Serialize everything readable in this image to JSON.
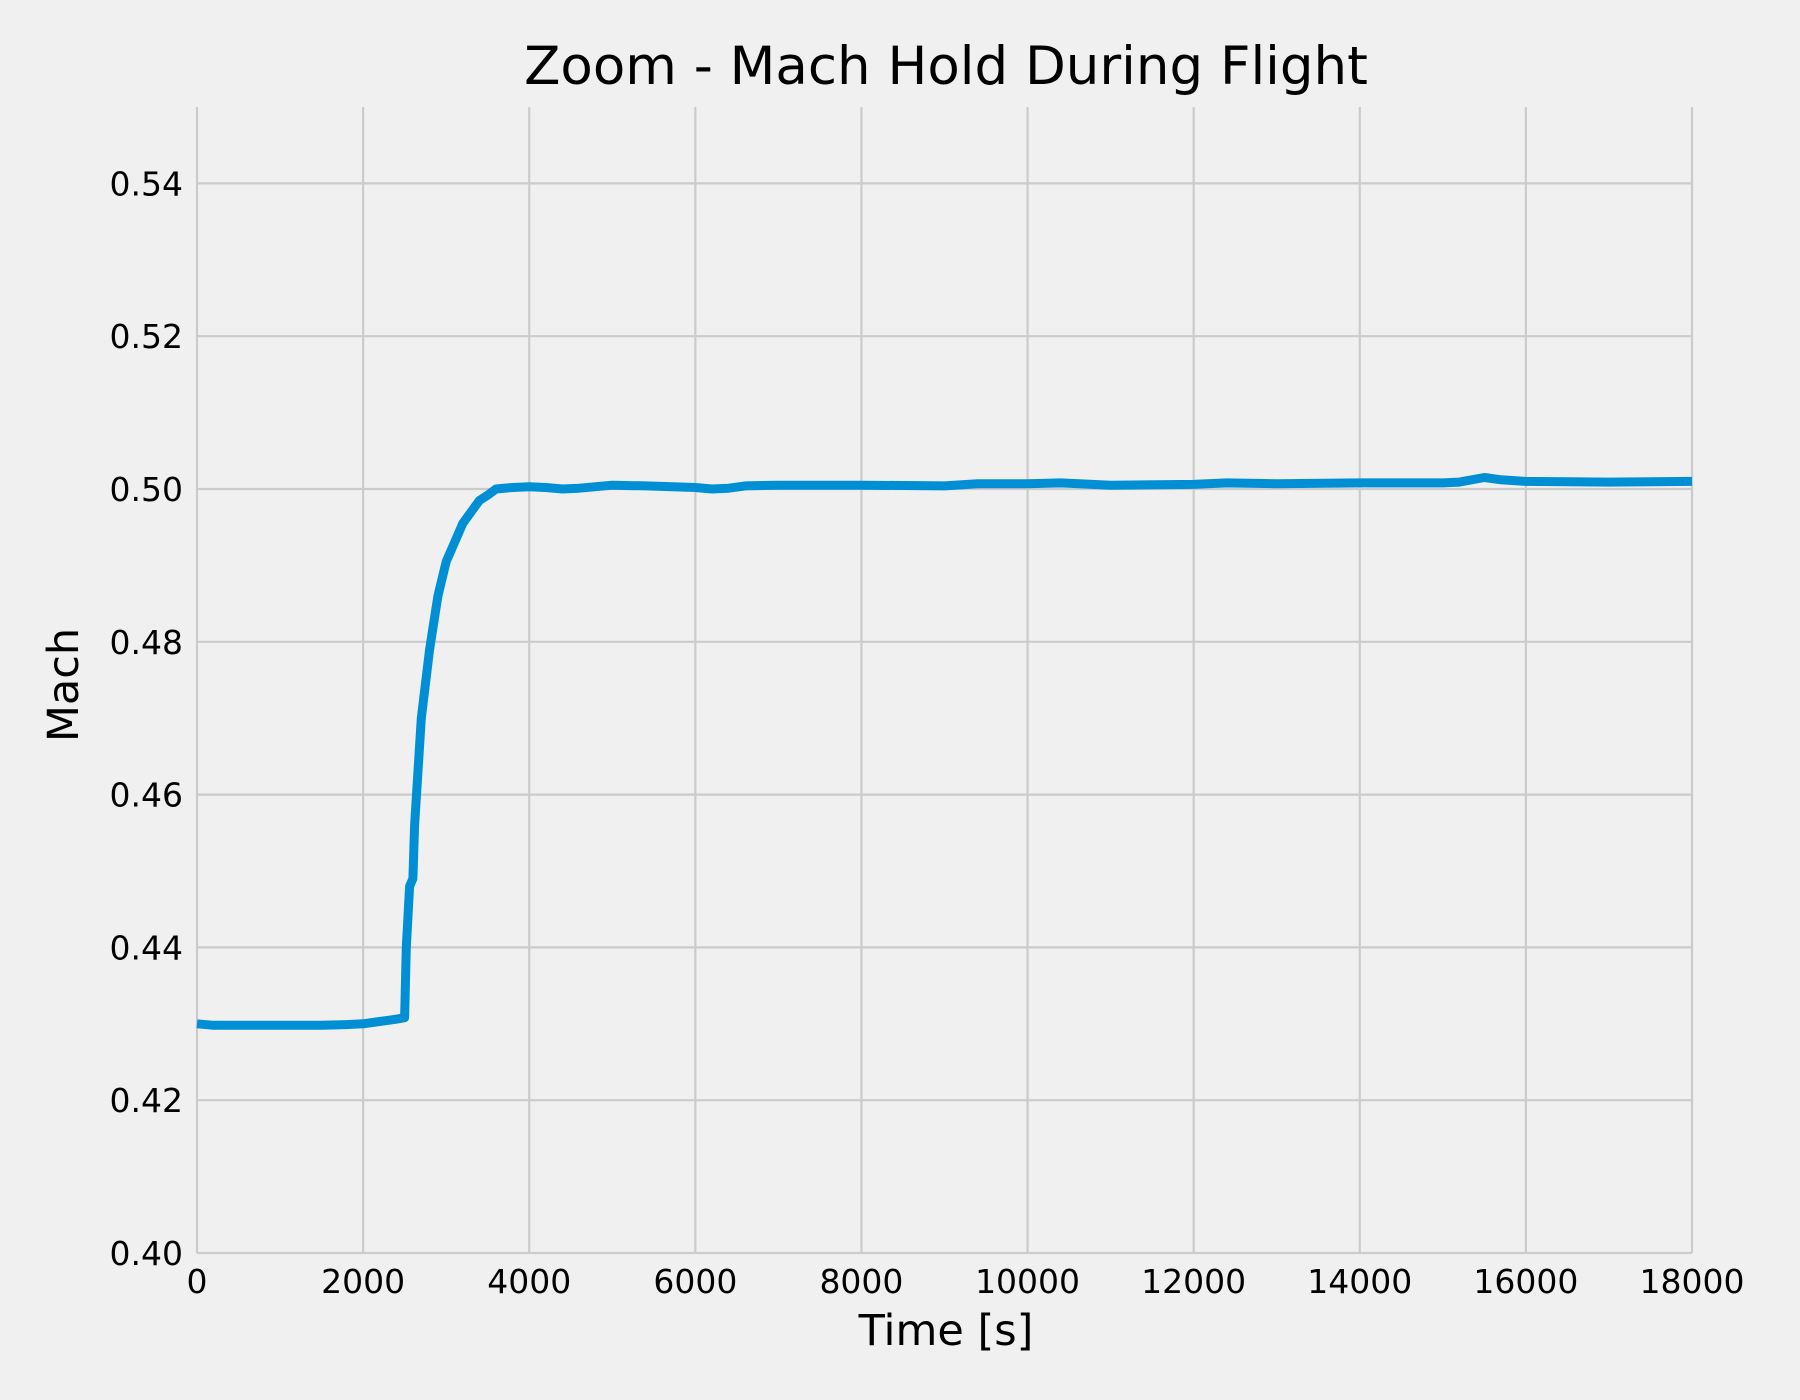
{
  "chart_data": {
    "type": "line",
    "title": "Zoom - Mach Hold During Flight",
    "xlabel": "Time [s]",
    "ylabel": "Mach",
    "xlim": [
      0,
      18000
    ],
    "ylim": [
      0.4,
      0.55
    ],
    "x_ticks": [
      0,
      2000,
      4000,
      6000,
      8000,
      10000,
      12000,
      14000,
      16000,
      18000
    ],
    "x_tick_labels": [
      "0",
      "2000",
      "4000",
      "6000",
      "8000",
      "10000",
      "12000",
      "14000",
      "16000",
      "18000"
    ],
    "y_ticks": [
      0.4,
      0.42,
      0.44,
      0.46,
      0.48,
      0.5,
      0.52,
      0.54
    ],
    "y_tick_labels": [
      "0.40",
      "0.42",
      "0.44",
      "0.46",
      "0.48",
      "0.50",
      "0.52",
      "0.54"
    ],
    "grid": true,
    "colors": {
      "background": "#f0f0f0",
      "grid": "#cbcbcb",
      "series": "#008fd5"
    },
    "series": [
      {
        "color": "#008fd5",
        "x": [
          0,
          200,
          500,
          800,
          1000,
          1500,
          1800,
          2000,
          2200,
          2400,
          2500,
          2520,
          2560,
          2600,
          2620,
          2700,
          2800,
          2900,
          3000,
          3100,
          3200,
          3300,
          3400,
          3500,
          3600,
          3800,
          4000,
          4200,
          4400,
          4600,
          4800,
          5000,
          5400,
          6000,
          6200,
          6400,
          6600,
          7000,
          8000,
          9000,
          9400,
          10000,
          10400,
          11000,
          12000,
          12400,
          13000,
          14000,
          15000,
          15200,
          15500,
          15700,
          16000,
          17000,
          18000
        ],
        "y": [
          0.43,
          0.4298,
          0.4298,
          0.4298,
          0.4298,
          0.4298,
          0.4299,
          0.43,
          0.4303,
          0.4306,
          0.4308,
          0.44,
          0.448,
          0.449,
          0.456,
          0.47,
          0.479,
          0.486,
          0.4905,
          0.493,
          0.4955,
          0.497,
          0.4985,
          0.4992,
          0.5,
          0.5002,
          0.5003,
          0.5002,
          0.5,
          0.5001,
          0.5003,
          0.5005,
          0.5004,
          0.5002,
          0.5,
          0.5001,
          0.5004,
          0.5005,
          0.5005,
          0.5004,
          0.5007,
          0.5007,
          0.5008,
          0.5005,
          0.5006,
          0.5008,
          0.5007,
          0.5008,
          0.5008,
          0.5009,
          0.5015,
          0.5012,
          0.501,
          0.5009,
          0.501
        ]
      }
    ]
  }
}
